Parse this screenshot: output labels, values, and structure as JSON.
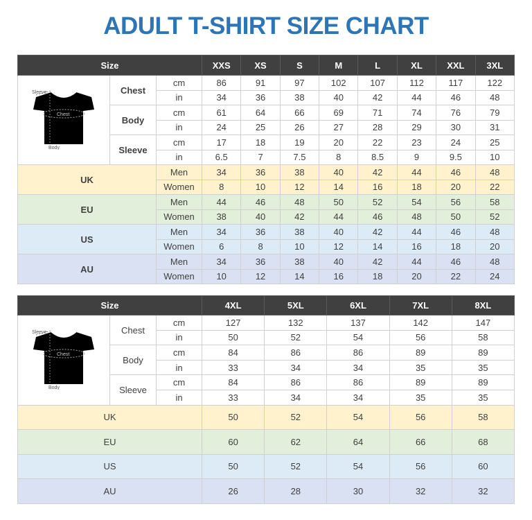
{
  "title": "ADULT T-SHIRT SIZE CHART",
  "shirt_labels": {
    "sleeve": "Sleeve",
    "chest": "Chest",
    "body": "Body"
  },
  "colors": {
    "title": "#2e75b6",
    "header": "#404040",
    "UK": "#fff2cc",
    "EU": "#e2efda",
    "US": "#ddebf7",
    "AU": "#d9e1f2"
  },
  "tables": [
    {
      "size_label": "Size",
      "sizes": [
        "XXS",
        "XS",
        "S",
        "M",
        "L",
        "XL",
        "XXL",
        "3XL"
      ],
      "measurements": [
        {
          "label": "Chest",
          "rows": [
            {
              "unit": "cm",
              "values": [
                "86",
                "91",
                "97",
                "102",
                "107",
                "112",
                "117",
                "122"
              ]
            },
            {
              "unit": "in",
              "values": [
                "34",
                "36",
                "38",
                "40",
                "42",
                "44",
                "46",
                "48"
              ]
            }
          ]
        },
        {
          "label": "Body",
          "rows": [
            {
              "unit": "cm",
              "values": [
                "61",
                "64",
                "66",
                "69",
                "71",
                "74",
                "76",
                "79"
              ]
            },
            {
              "unit": "in",
              "values": [
                "24",
                "25",
                "26",
                "27",
                "28",
                "29",
                "30",
                "31"
              ]
            }
          ]
        },
        {
          "label": "Sleeve",
          "rows": [
            {
              "unit": "cm",
              "values": [
                "17",
                "18",
                "19",
                "20",
                "22",
                "23",
                "24",
                "25"
              ]
            },
            {
              "unit": "in",
              "values": [
                "6.5",
                "7",
                "7.5",
                "8",
                "8.5",
                "9",
                "9.5",
                "10"
              ]
            }
          ]
        }
      ],
      "regions": [
        {
          "label": "UK",
          "rows": [
            {
              "gender": "Men",
              "values": [
                "34",
                "36",
                "38",
                "40",
                "42",
                "44",
                "46",
                "48"
              ]
            },
            {
              "gender": "Women",
              "values": [
                "8",
                "10",
                "12",
                "14",
                "16",
                "18",
                "20",
                "22"
              ]
            }
          ]
        },
        {
          "label": "EU",
          "rows": [
            {
              "gender": "Men",
              "values": [
                "44",
                "46",
                "48",
                "50",
                "52",
                "54",
                "56",
                "58"
              ]
            },
            {
              "gender": "Women",
              "values": [
                "38",
                "40",
                "42",
                "44",
                "46",
                "48",
                "50",
                "52"
              ]
            }
          ]
        },
        {
          "label": "US",
          "rows": [
            {
              "gender": "Men",
              "values": [
                "34",
                "36",
                "38",
                "40",
                "42",
                "44",
                "46",
                "48"
              ]
            },
            {
              "gender": "Women",
              "values": [
                "6",
                "8",
                "10",
                "12",
                "14",
                "16",
                "18",
                "20"
              ]
            }
          ]
        },
        {
          "label": "AU",
          "rows": [
            {
              "gender": "Men",
              "values": [
                "34",
                "36",
                "38",
                "40",
                "42",
                "44",
                "46",
                "48"
              ]
            },
            {
              "gender": "Women",
              "values": [
                "10",
                "12",
                "14",
                "16",
                "18",
                "20",
                "22",
                "24"
              ]
            }
          ]
        }
      ]
    },
    {
      "size_label": "Size",
      "sizes": [
        "4XL",
        "5XL",
        "6XL",
        "7XL",
        "8XL"
      ],
      "measurements": [
        {
          "label": "Chest",
          "rows": [
            {
              "unit": "cm",
              "values": [
                "127",
                "132",
                "137",
                "142",
                "147"
              ]
            },
            {
              "unit": "in",
              "values": [
                "50",
                "52",
                "54",
                "56",
                "58"
              ]
            }
          ]
        },
        {
          "label": "Body",
          "rows": [
            {
              "unit": "cm",
              "values": [
                "84",
                "86",
                "86",
                "89",
                "89"
              ]
            },
            {
              "unit": "in",
              "values": [
                "33",
                "34",
                "34",
                "35",
                "35"
              ]
            }
          ]
        },
        {
          "label": "Sleeve",
          "rows": [
            {
              "unit": "cm",
              "values": [
                "84",
                "86",
                "86",
                "89",
                "89"
              ]
            },
            {
              "unit": "in",
              "values": [
                "33",
                "34",
                "34",
                "35",
                "35"
              ]
            }
          ]
        }
      ],
      "regions": [
        {
          "label": "UK",
          "values": [
            "50",
            "52",
            "54",
            "56",
            "58"
          ]
        },
        {
          "label": "EU",
          "values": [
            "60",
            "62",
            "64",
            "66",
            "68"
          ]
        },
        {
          "label": "US",
          "values": [
            "50",
            "52",
            "54",
            "56",
            "60"
          ]
        },
        {
          "label": "AU",
          "values": [
            "26",
            "28",
            "30",
            "32",
            "32"
          ]
        }
      ]
    }
  ]
}
